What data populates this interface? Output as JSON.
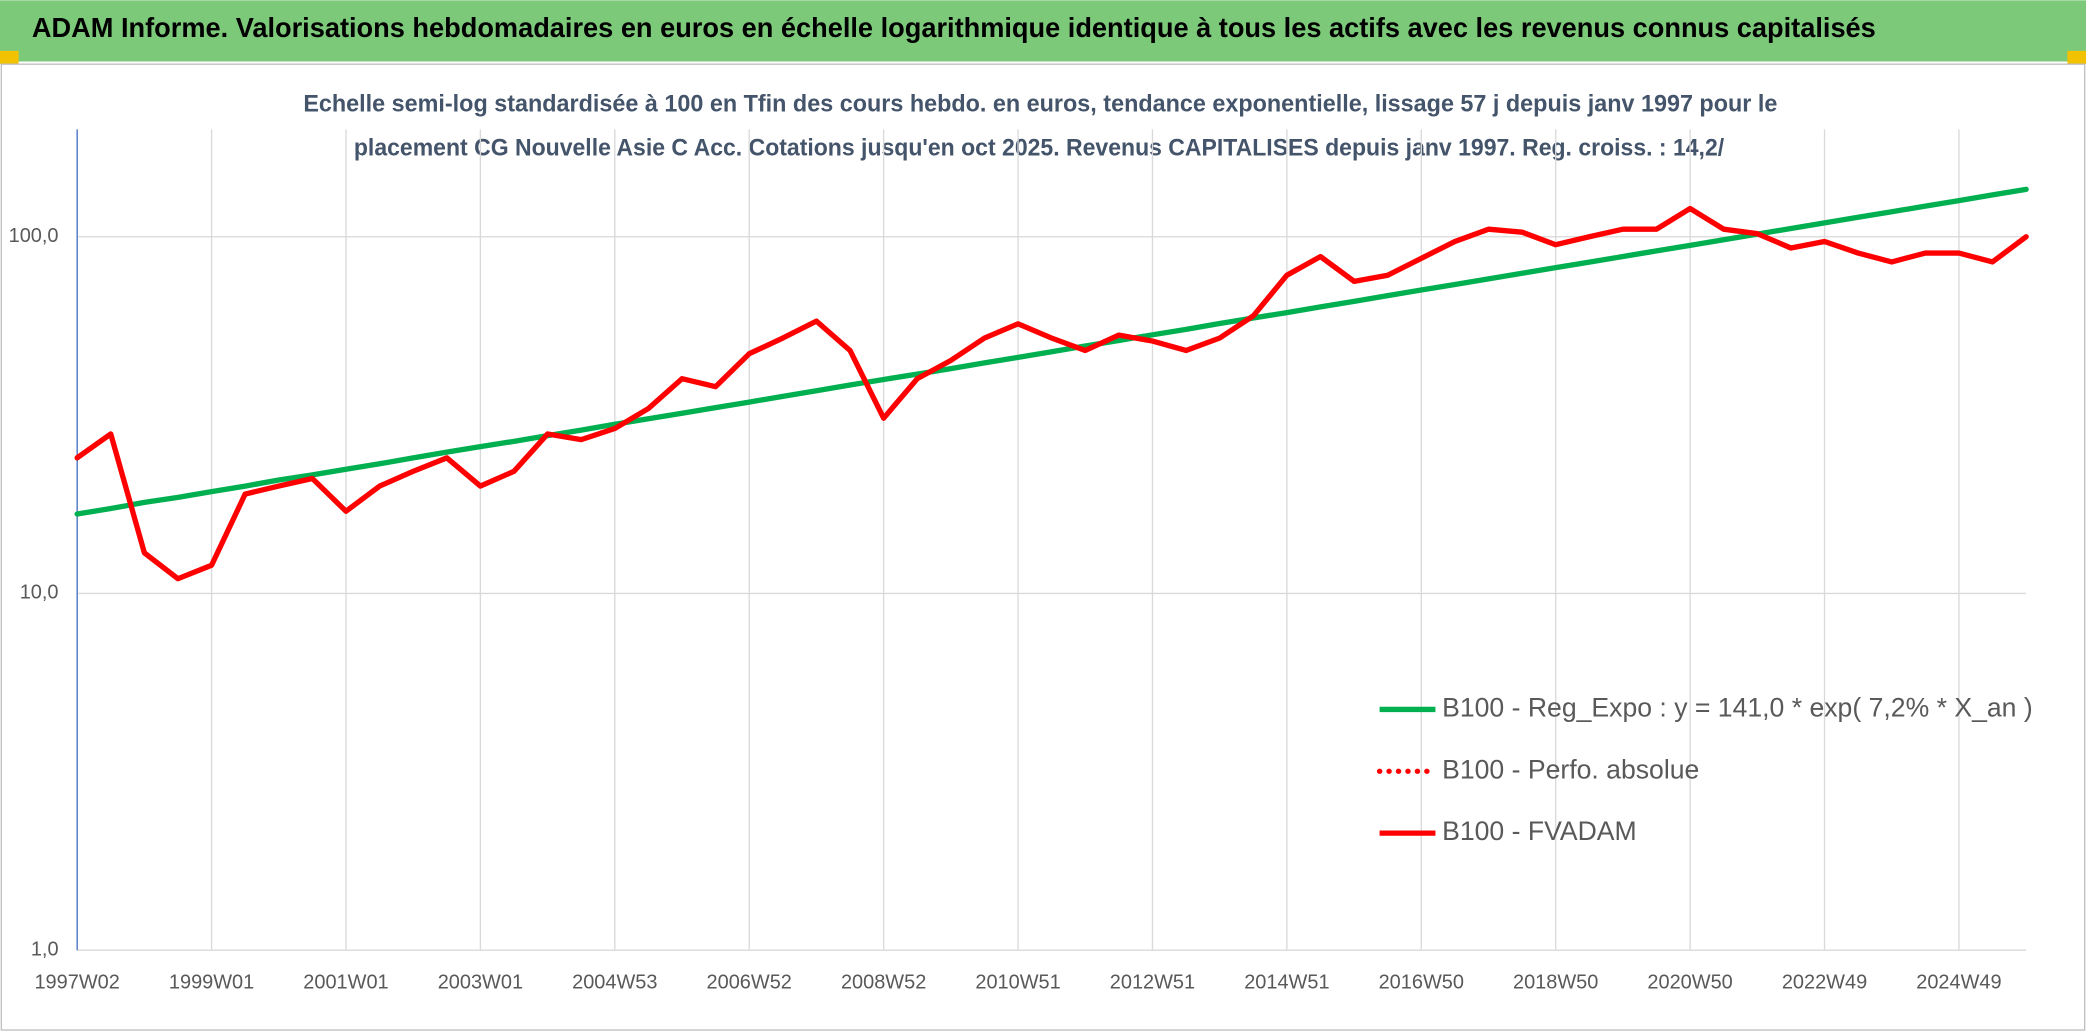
{
  "header": {
    "title": "ADAM Informe. Valorisations hebdomadaires en euros en échelle logarithmique identique à tous les actifs avec les revenus connus capitalisés"
  },
  "chart_data": {
    "type": "line",
    "title": [
      "Echelle semi-log standardisée à 100 en Tfin des cours hebdo. en euros, tendance exponentielle, lissage 57 j depuis janv 1997 pour le",
      "placement CG Nouvelle Asie C Acc. Cotations jusqu'en oct 2025. Revenus CAPITALISES depuis janv 1997. Reg. croiss. : 14,2/"
    ],
    "categories": [
      "1997W02",
      null,
      null,
      null,
      "1999W01",
      null,
      null,
      null,
      "2001W01",
      null,
      null,
      null,
      "2003W01",
      null,
      null,
      null,
      "2004W53",
      null,
      null,
      null,
      "2006W52",
      null,
      null,
      null,
      "2008W52",
      null,
      null,
      null,
      "2010W51",
      null,
      null,
      null,
      "2012W51",
      null,
      null,
      null,
      "2014W51",
      null,
      null,
      null,
      "2016W50",
      null,
      null,
      null,
      "2018W50",
      null,
      null,
      null,
      "2020W50",
      null,
      null,
      null,
      "2022W49",
      null,
      null,
      null,
      "2024W49",
      null,
      null
    ],
    "series": [
      {
        "name": "B100 - Reg_Expo : y = 141,0 * exp( 7,2% *  X_an )",
        "color": "#00b050",
        "style": "solid",
        "values": [
          16.7,
          17.3,
          18.0,
          18.6,
          19.3,
          20.0,
          20.8,
          21.5,
          22.3,
          23.1,
          24.0,
          24.9,
          25.8,
          26.7,
          27.7,
          28.7,
          29.8,
          30.9,
          32.0,
          33.2,
          34.4,
          35.7,
          37.0,
          38.4,
          39.8,
          41.2,
          42.7,
          44.3,
          45.9,
          47.6,
          49.4,
          51.2,
          53.1,
          55.0,
          57.1,
          59.2,
          61.3,
          63.6,
          65.9,
          68.4,
          70.9,
          73.5,
          76.2,
          79.0,
          81.9,
          84.9,
          88.0,
          91.3,
          94.6,
          98.1,
          101.7,
          105.5,
          109.4,
          113.4,
          117.5,
          121.9,
          126.3,
          131.0,
          135.8
        ]
      },
      {
        "name": "B100 - Perfo. absolue",
        "color": "#ff0000",
        "style": "dotted",
        "values": [
          24,
          28,
          13,
          11,
          12,
          19,
          20,
          21,
          17,
          20,
          22,
          24,
          20,
          22,
          28,
          27,
          29,
          33,
          40,
          38,
          47,
          52,
          58,
          48,
          31,
          40,
          45,
          52,
          57,
          52,
          48,
          53,
          51,
          48,
          52,
          60,
          78,
          88,
          75,
          78,
          87,
          97,
          105,
          103,
          95,
          100,
          105,
          105,
          120,
          105,
          102,
          93,
          97,
          90,
          85,
          90,
          90,
          85,
          100
        ]
      },
      {
        "name": "B100 - FVADAM",
        "color": "#ff0000",
        "style": "solid",
        "values": [
          24,
          28,
          13,
          11,
          12,
          19,
          20,
          21,
          17,
          20,
          22,
          24,
          20,
          22,
          28,
          27,
          29,
          33,
          40,
          38,
          47,
          52,
          58,
          48,
          31,
          40,
          45,
          52,
          57,
          52,
          48,
          53,
          51,
          48,
          52,
          60,
          78,
          88,
          75,
          78,
          87,
          97,
          105,
          103,
          95,
          100,
          105,
          105,
          120,
          105,
          102,
          93,
          97,
          90,
          85,
          90,
          90,
          85,
          100
        ]
      }
    ],
    "ylim": [
      1,
      200
    ],
    "yticks": [
      {
        "value": 1,
        "label": "1,0"
      },
      {
        "value": 10,
        "label": "10,0"
      },
      {
        "value": 100,
        "label": "100,0"
      }
    ],
    "log_y": true,
    "grid": true,
    "legend": "right"
  }
}
